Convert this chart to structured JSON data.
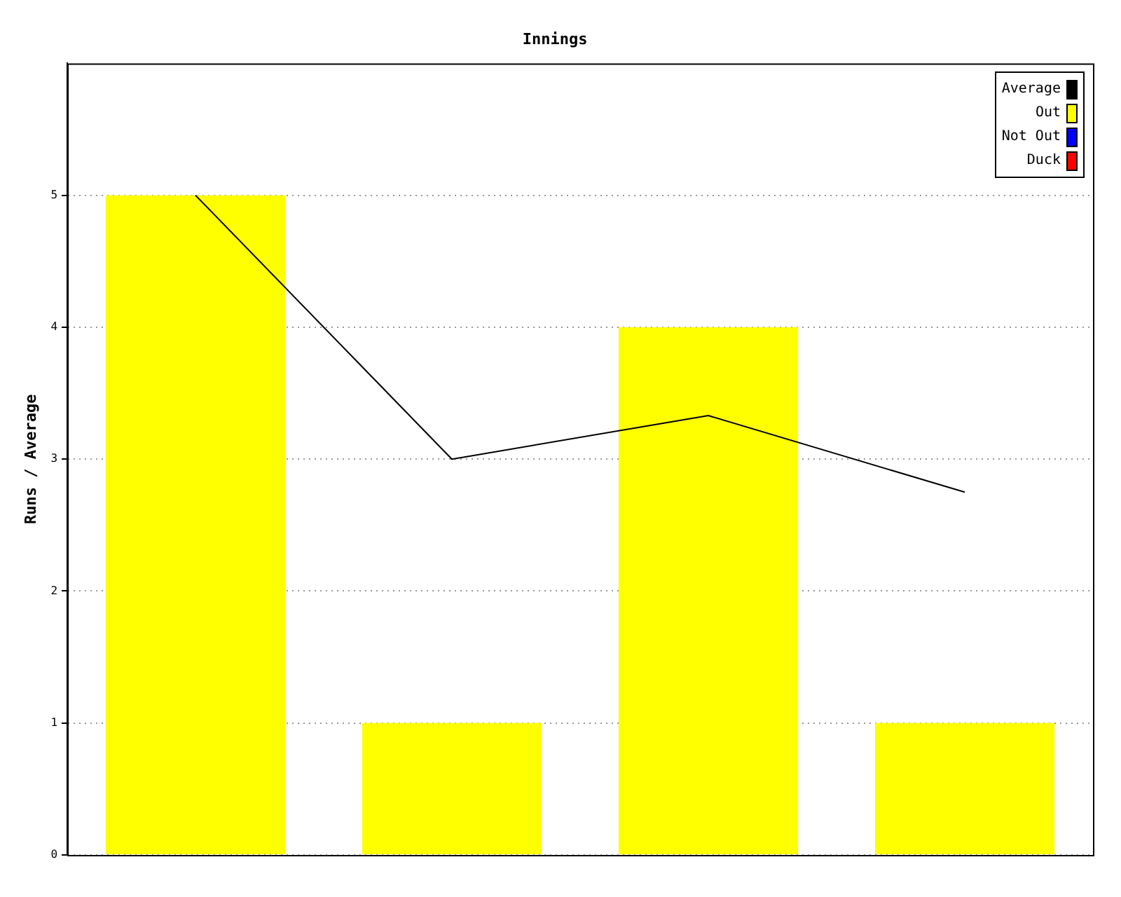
{
  "chart_data": {
    "type": "bar",
    "title": "Innings",
    "ylabel": "Runs / Average",
    "categories": [
      null,
      null,
      null,
      null
    ],
    "stacked": true,
    "series": [
      {
        "name": "Average",
        "type": "line",
        "color": "#000000",
        "values": [
          5,
          3,
          3.33,
          2.75
        ]
      },
      {
        "name": "Out",
        "color": "#ffff00",
        "values": [
          5,
          1,
          4,
          1
        ]
      },
      {
        "name": "Not Out",
        "color": "#0000ff",
        "values": [
          0,
          0,
          0,
          0
        ]
      },
      {
        "name": "Duck",
        "color": "#ff0000",
        "values": [
          0,
          0,
          0,
          0
        ]
      }
    ],
    "ylim": [
      0,
      6
    ],
    "yticks": [
      0,
      1,
      2,
      3,
      4,
      5
    ],
    "grid": "y",
    "legend": "top right",
    "marker": "none"
  }
}
